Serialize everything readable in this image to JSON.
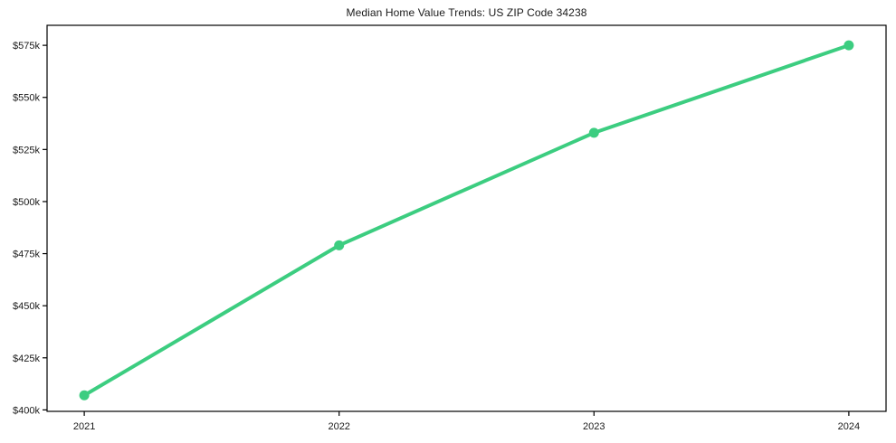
{
  "chart_data": {
    "type": "line",
    "title": "Median Home Value Trends: US ZIP Code 34238",
    "categories": [
      "2021",
      "2022",
      "2023",
      "2024"
    ],
    "values": [
      407,
      479,
      533,
      575
    ],
    "unit": "$k",
    "xlabel": "",
    "ylabel": "",
    "y_ticks": [
      {
        "value": 400,
        "label": "$400k"
      },
      {
        "value": 425,
        "label": "$425k"
      },
      {
        "value": 450,
        "label": "$450k"
      },
      {
        "value": 475,
        "label": "$475k"
      },
      {
        "value": 500,
        "label": "$500k"
      },
      {
        "value": 525,
        "label": "$525k"
      },
      {
        "value": 550,
        "label": "$550k"
      },
      {
        "value": 575,
        "label": "$575k"
      }
    ],
    "ylim_k": [
      399.3,
      584.6
    ],
    "xlim_index": [
      -0.146,
      3.146
    ],
    "grid": false,
    "legend": false,
    "marker": "circle",
    "line_color": "#3ccd80",
    "axis_color": "#000000",
    "text_color": "#1a1a1a",
    "background": "#ffffff"
  }
}
